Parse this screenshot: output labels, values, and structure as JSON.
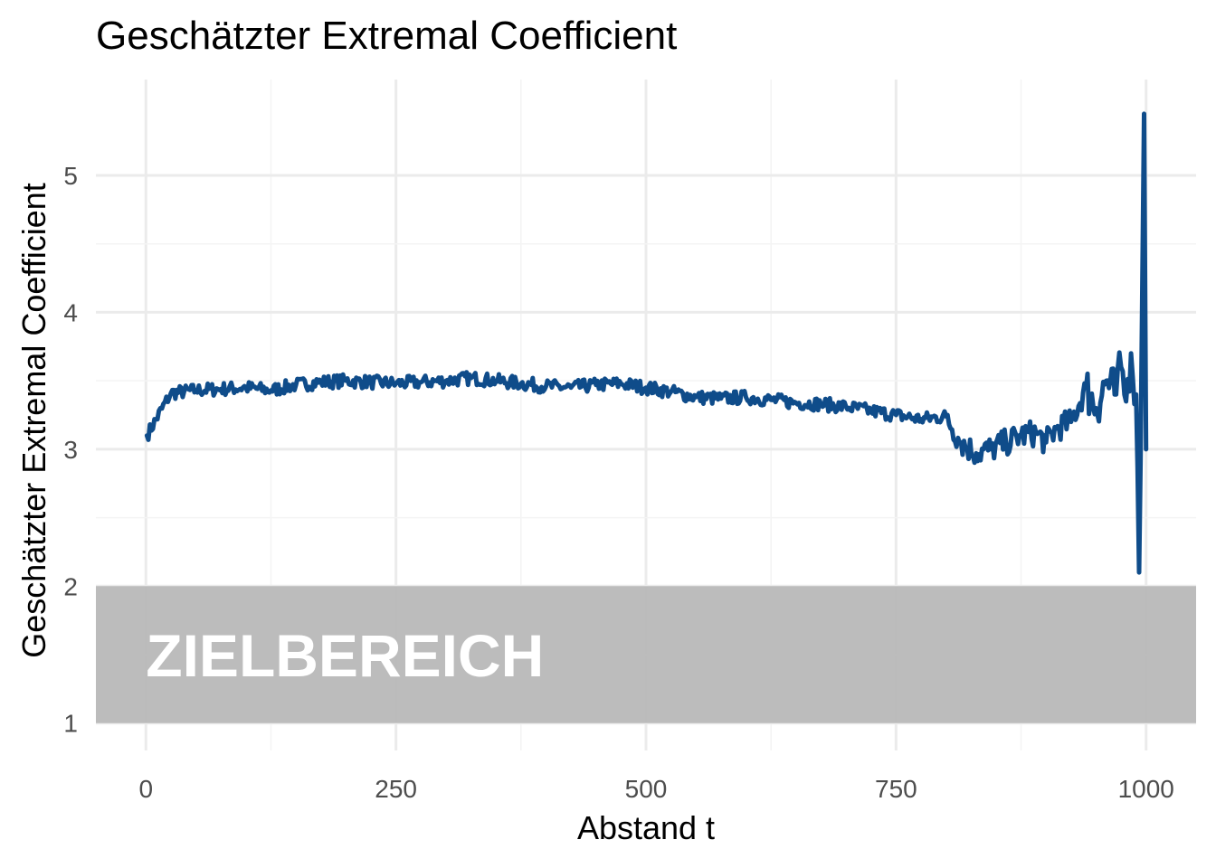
{
  "chart_data": {
    "type": "line",
    "title": "Geschätzter Extremal Coefficient",
    "xlabel": "Abstand t",
    "ylabel": "Geschätzter Extremal Coefficient",
    "xlim": [
      -50,
      1050
    ],
    "ylim": [
      0.8,
      5.7
    ],
    "x_ticks": [
      0,
      250,
      500,
      750,
      1000
    ],
    "y_ticks": [
      1,
      2,
      3,
      4,
      5
    ],
    "grid": true,
    "line_color": "#0f4c8a",
    "band": {
      "ymin": 1,
      "ymax": 2,
      "label": "ZIELBEREICH",
      "color": "#b8b8b8"
    },
    "series": [
      {
        "x": [
          1,
          25,
          50,
          75,
          100,
          125,
          150,
          175,
          200,
          225,
          250,
          275,
          300,
          325,
          350,
          375,
          400,
          425,
          450,
          475,
          500,
          525,
          550,
          575,
          600,
          625,
          650,
          675,
          700,
          725,
          750,
          775,
          800,
          815,
          830,
          845,
          860,
          875,
          890,
          900,
          910,
          925,
          940,
          950,
          960,
          970,
          975,
          980,
          985,
          990,
          993,
          996,
          998,
          1000
        ],
        "y": [
          3.1,
          3.41,
          3.43,
          3.44,
          3.45,
          3.43,
          3.47,
          3.49,
          3.5,
          3.49,
          3.48,
          3.49,
          3.5,
          3.52,
          3.5,
          3.48,
          3.46,
          3.45,
          3.47,
          3.48,
          3.45,
          3.42,
          3.38,
          3.37,
          3.38,
          3.36,
          3.34,
          3.33,
          3.31,
          3.28,
          3.25,
          3.22,
          3.24,
          3.05,
          2.97,
          3.0,
          3.05,
          3.1,
          3.12,
          3.05,
          3.15,
          3.2,
          3.45,
          3.3,
          3.5,
          3.4,
          3.6,
          3.35,
          3.7,
          3.4,
          2.1,
          4.0,
          5.45,
          3.0
        ]
      }
    ]
  }
}
